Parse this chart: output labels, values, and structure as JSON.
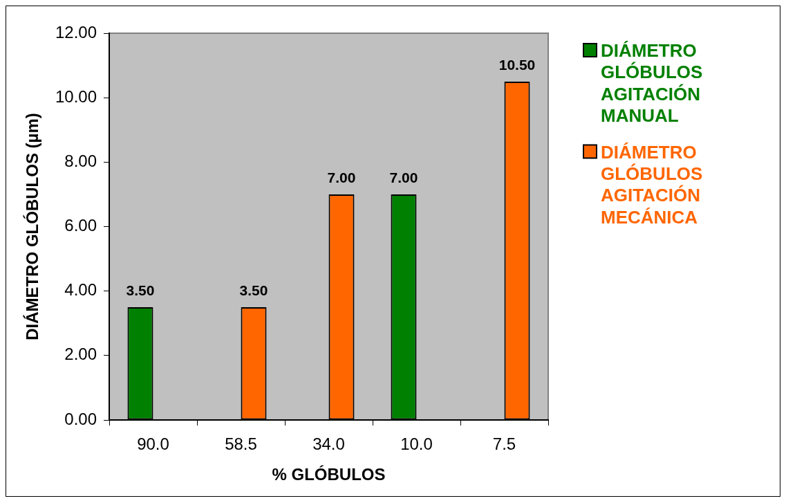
{
  "chart_data": {
    "type": "bar",
    "xlabel": "% GLÓBULOS",
    "ylabel": "DIÁMETRO GLÓBULOS (µm)",
    "categories": [
      "90.0",
      "58.5",
      "34.0",
      "10.0",
      "7.5"
    ],
    "series": [
      {
        "name": "DIÁMETRO GLÓBULOS AGITACIÓN MANUAL",
        "color": "#008000",
        "values": [
          3.5,
          null,
          null,
          7.0,
          null
        ],
        "value_labels": [
          "3.50",
          null,
          null,
          "7.00",
          null
        ]
      },
      {
        "name": "DIÁMETRO GLÓBULOS AGITACIÓN MECÁNICA",
        "color": "#ff6600",
        "values": [
          null,
          3.5,
          7.0,
          null,
          10.5
        ],
        "value_labels": [
          null,
          "3.50",
          "7.00",
          null,
          "10.50"
        ]
      }
    ],
    "ylim": [
      0,
      12
    ],
    "yticks": [
      {
        "value": 0,
        "label": "0.00"
      },
      {
        "value": 2,
        "label": "2.00"
      },
      {
        "value": 4,
        "label": "4.00"
      },
      {
        "value": 6,
        "label": "6.00"
      },
      {
        "value": 8,
        "label": "8.00"
      },
      {
        "value": 10,
        "label": "10.00"
      },
      {
        "value": 12,
        "label": "12.00"
      }
    ],
    "grid": false,
    "legend": "right"
  }
}
